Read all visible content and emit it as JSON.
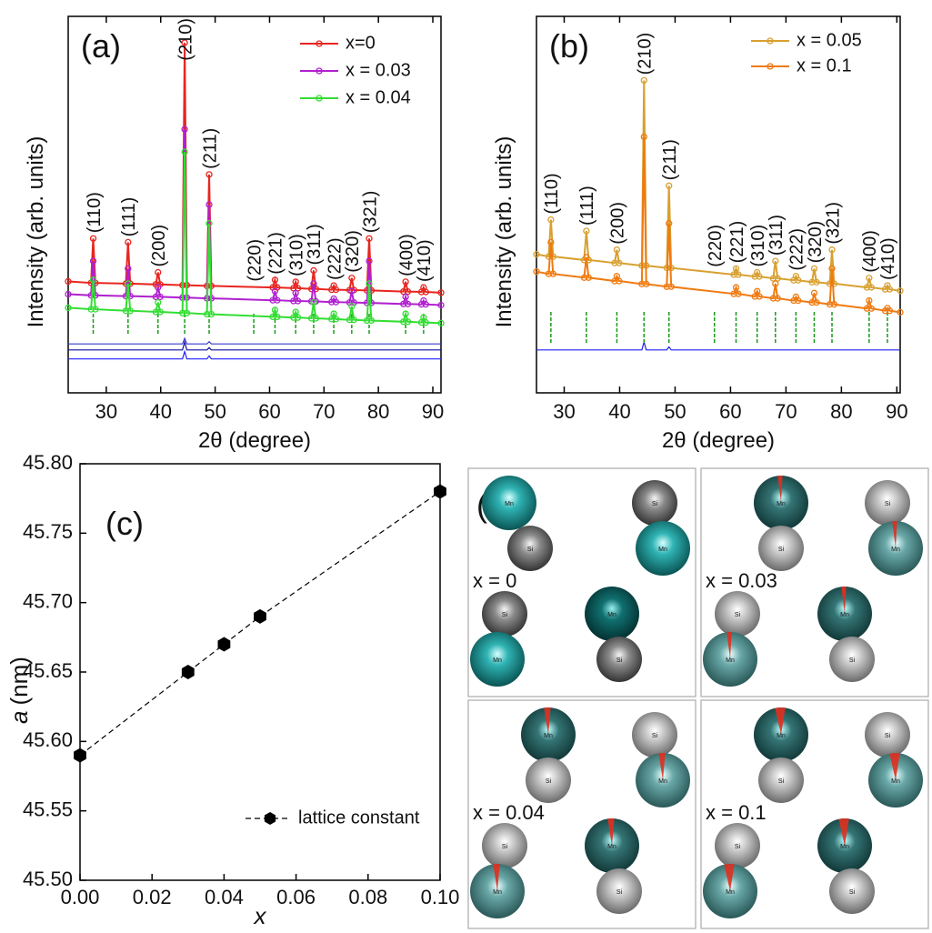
{
  "chart_data": [
    {
      "type": "line",
      "panel_label": "(a)",
      "xlabel": "2θ (degree)",
      "ylabel": "Intensity (arb. units)",
      "xlim": [
        23,
        91.5
      ],
      "xticks": [
        30,
        40,
        50,
        60,
        70,
        80,
        90
      ],
      "ylim": [
        0,
        100
      ],
      "legend": "upper right",
      "marker": "circle",
      "x": [
        23,
        27.2,
        27.6,
        28.0,
        33.6,
        34.0,
        34.4,
        39.1,
        39.5,
        39.9,
        44.0,
        44.4,
        44.8,
        48.5,
        48.9,
        49.3,
        60.6,
        61.0,
        61.4,
        64.4,
        64.8,
        65.2,
        67.7,
        68.1,
        68.5,
        71.4,
        71.8,
        72.2,
        74.7,
        75.1,
        75.5,
        77.9,
        78.3,
        78.7,
        84.6,
        85.0,
        85.4,
        87.9,
        88.3,
        88.7,
        91.5
      ],
      "series": [
        {
          "name": "x=0",
          "color": "#e8251f",
          "values": [
            29.6,
            29.2,
            41,
            29.2,
            29.0,
            40,
            29.0,
            28.8,
            32,
            28.8,
            28.6,
            93,
            28.6,
            28.4,
            58,
            28.4,
            28.0,
            30,
            28.0,
            27.8,
            29.5,
            27.8,
            27.6,
            32.5,
            27.6,
            27.4,
            28.5,
            27.4,
            27.3,
            30.5,
            27.3,
            27.2,
            41,
            27.2,
            26.9,
            29.5,
            26.9,
            26.8,
            28,
            26.8,
            26.6
          ]
        },
        {
          "name": "x = 0.03",
          "color": "#b020d0",
          "values": [
            26.2,
            25.9,
            35,
            25.9,
            25.7,
            33,
            25.7,
            25.5,
            28,
            25.5,
            25.3,
            70,
            25.3,
            25.1,
            50,
            25.1,
            24.6,
            27,
            24.6,
            24.4,
            26.5,
            24.4,
            24.3,
            29,
            24.3,
            24.1,
            25,
            24.1,
            24.0,
            27,
            24.0,
            23.9,
            35,
            23.9,
            23.6,
            25.5,
            23.6,
            23.5,
            24.5,
            23.5,
            23.3
          ]
        },
        {
          "name": "x = 0.04",
          "color": "#33dd33",
          "values": [
            22.6,
            22.2,
            30,
            22.2,
            21.8,
            29,
            21.8,
            21.5,
            24,
            21.5,
            21.2,
            64,
            21.2,
            20.9,
            45,
            20.9,
            20.2,
            22,
            20.2,
            20.0,
            21.5,
            20.0,
            19.8,
            24,
            19.8,
            19.6,
            21,
            19.6,
            19.4,
            23,
            19.4,
            19.2,
            29,
            19.2,
            18.9,
            21,
            18.9,
            18.7,
            20,
            18.7,
            18.5
          ]
        }
      ],
      "residuals": [
        {
          "color": "#3a3acc",
          "values": [
            13,
            13,
            13,
            13,
            13,
            13,
            13,
            13,
            13,
            13,
            13,
            14.5,
            13,
            13,
            13.6,
            13,
            13,
            13,
            13,
            13,
            13,
            13,
            13,
            13,
            13,
            13,
            13,
            13,
            13,
            13,
            13,
            13,
            13,
            13,
            13,
            13,
            13,
            13,
            13,
            13,
            13
          ]
        },
        {
          "color": "#1010a0",
          "values": [
            11.4,
            11.4,
            11.4,
            11.4,
            11.4,
            11.4,
            11.4,
            11.4,
            11.4,
            11.4,
            11.4,
            13.5,
            11.4,
            11.4,
            12,
            11.4,
            11.4,
            11.4,
            11.4,
            11.4,
            11.4,
            11.4,
            11.4,
            11.4,
            11.4,
            11.4,
            11.4,
            11.4,
            11.4,
            11.4,
            11.4,
            11.4,
            11.4,
            11.4,
            11.4,
            11.4,
            11.4,
            11.4,
            11.4,
            11.4,
            11.4
          ]
        },
        {
          "color": "#2020ff",
          "values": [
            9,
            9,
            9,
            9,
            9,
            9,
            9,
            9,
            9,
            9,
            9,
            11,
            9,
            9,
            9.8,
            9,
            9,
            9,
            9,
            9,
            9,
            9,
            9,
            9,
            9,
            9,
            9,
            9,
            9,
            9,
            9,
            9,
            9,
            9,
            9,
            9,
            9,
            9,
            9,
            9,
            9
          ]
        }
      ],
      "bragg_color": "#1a9a1a",
      "bragg_peaks": [
        {
          "hkl": "(110)",
          "x": 27.6
        },
        {
          "hkl": "(111)",
          "x": 34.0
        },
        {
          "hkl": "(200)",
          "x": 39.5
        },
        {
          "hkl": "(210)",
          "x": 44.4
        },
        {
          "hkl": "(211)",
          "x": 48.9
        },
        {
          "hkl": "(220)",
          "x": 57.1
        },
        {
          "hkl": "(221)",
          "x": 61.0
        },
        {
          "hkl": "(310)",
          "x": 64.8
        },
        {
          "hkl": "(311)",
          "x": 68.1
        },
        {
          "hkl": "(222)",
          "x": 71.8
        },
        {
          "hkl": "(320)",
          "x": 75.1
        },
        {
          "hkl": "(321)",
          "x": 78.3
        },
        {
          "hkl": "(400)",
          "x": 85.0
        },
        {
          "hkl": "(410)",
          "x": 88.3
        }
      ]
    },
    {
      "type": "line",
      "panel_label": "(b)",
      "xlabel": "2θ (degree)",
      "ylabel": "Intensity (arb. units)",
      "xlim": [
        25,
        90.6
      ],
      "xticks": [
        30,
        40,
        50,
        60,
        70,
        80,
        90
      ],
      "ylim": [
        0,
        100
      ],
      "legend": "upper right",
      "marker": "circle",
      "x": [
        25,
        27.2,
        27.6,
        28.0,
        33.6,
        34.0,
        34.4,
        39.1,
        39.5,
        39.9,
        44.0,
        44.4,
        44.8,
        48.5,
        48.9,
        49.3,
        60.6,
        61.0,
        61.4,
        64.4,
        64.8,
        65.2,
        67.7,
        68.1,
        68.5,
        71.4,
        71.8,
        72.2,
        74.7,
        75.1,
        75.5,
        77.9,
        78.3,
        78.7,
        84.6,
        85.0,
        85.4,
        87.9,
        88.3,
        88.7,
        90.6
      ],
      "series": [
        {
          "name": "x = 0.05",
          "color": "#d8a030",
          "values": [
            36.8,
            36.2,
            46,
            36.2,
            35.3,
            43,
            35.3,
            34.5,
            38,
            34.5,
            33.8,
            83,
            33.8,
            33.2,
            55,
            33.2,
            31.4,
            33,
            31.4,
            30.9,
            32,
            30.9,
            30.4,
            35,
            30.4,
            29.9,
            31,
            29.9,
            29.4,
            33,
            29.4,
            29.0,
            38,
            29.0,
            28.0,
            30.5,
            28.0,
            27.5,
            28.5,
            27.5,
            27.1
          ]
        },
        {
          "name": "x = 0.1",
          "color": "#f07a10",
          "values": [
            32.2,
            31.6,
            40,
            31.6,
            30.6,
            36,
            30.6,
            29.7,
            31,
            29.7,
            28.9,
            68,
            28.9,
            28.2,
            45,
            28.2,
            26.3,
            28,
            26.3,
            25.6,
            27,
            25.6,
            25.1,
            29,
            25.1,
            24.5,
            25.5,
            24.5,
            24.0,
            26.5,
            24.0,
            23.5,
            33,
            23.5,
            22.4,
            24.5,
            22.4,
            21.8,
            22.5,
            21.8,
            21.4
          ]
        }
      ],
      "residuals": [
        {
          "color": "#2020ee",
          "values": [
            11.4,
            11.4,
            11.4,
            11.4,
            11.4,
            11.4,
            11.4,
            11.4,
            11.4,
            11.4,
            11.4,
            13.5,
            11.4,
            11.4,
            12.2,
            11.4,
            11.4,
            11.4,
            11.4,
            11.4,
            11.4,
            11.4,
            11.4,
            11.4,
            11.4,
            11.4,
            11.4,
            11.4,
            11.4,
            11.4,
            11.4,
            11.4,
            11.4,
            11.4,
            11.4,
            11.4,
            11.4,
            11.4,
            11.4,
            11.4,
            11.4
          ]
        }
      ],
      "bragg_color": "#1a9a1a",
      "bragg_peaks": [
        {
          "hkl": "(110)",
          "x": 27.6
        },
        {
          "hkl": "(111)",
          "x": 34.0
        },
        {
          "hkl": "(200)",
          "x": 39.5
        },
        {
          "hkl": "(210)",
          "x": 44.4
        },
        {
          "hkl": "(211)",
          "x": 48.9
        },
        {
          "hkl": "(220)",
          "x": 57.1
        },
        {
          "hkl": "(221)",
          "x": 61.0
        },
        {
          "hkl": "(310)",
          "x": 64.8
        },
        {
          "hkl": "(311)",
          "x": 68.1
        },
        {
          "hkl": "(222)",
          "x": 71.8
        },
        {
          "hkl": "(320)",
          "x": 75.1
        },
        {
          "hkl": "(321)",
          "x": 78.3
        },
        {
          "hkl": "(400)",
          "x": 85.0
        },
        {
          "hkl": "(410)",
          "x": 88.3
        }
      ]
    },
    {
      "type": "scatter",
      "panel_label": "(c)",
      "xlabel": "x",
      "ylabel_symbol": "a",
      "ylabel_unit": "(nm)",
      "xlim": [
        0,
        0.1
      ],
      "xticks": [
        {
          "value": 0,
          "label": "0.00"
        },
        {
          "value": 0.02,
          "label": "0.02"
        },
        {
          "value": 0.04,
          "label": "0.04"
        },
        {
          "value": 0.06,
          "label": "0.06"
        },
        {
          "value": 0.08,
          "label": "0.08"
        },
        {
          "value": 0.1,
          "label": "0.10"
        }
      ],
      "ylim": [
        45.5,
        45.8
      ],
      "yticks": [
        {
          "value": 45.5,
          "label": "45.50"
        },
        {
          "value": 45.55,
          "label": "45.55"
        },
        {
          "value": 45.6,
          "label": "45.60"
        },
        {
          "value": 45.65,
          "label": "45.65"
        },
        {
          "value": 45.7,
          "label": "45.70"
        },
        {
          "value": 45.75,
          "label": "45.75"
        },
        {
          "value": 45.8,
          "label": "45.80"
        }
      ],
      "legend": "lower right",
      "marker": "hexagon",
      "line_style": "dashed",
      "series": [
        {
          "name": "lattice constant",
          "color": "#000000",
          "x": [
            0,
            0.03,
            0.04,
            0.05,
            0.1
          ],
          "values": [
            45.59,
            45.65,
            45.67,
            45.69,
            45.78
          ]
        }
      ]
    }
  ],
  "diagram": {
    "label": "(d)",
    "atoms": [
      "Mn",
      "Si"
    ],
    "panels": [
      "x = 0",
      "x = 0.03",
      "x = 0.04",
      "x = 0.1"
    ]
  }
}
